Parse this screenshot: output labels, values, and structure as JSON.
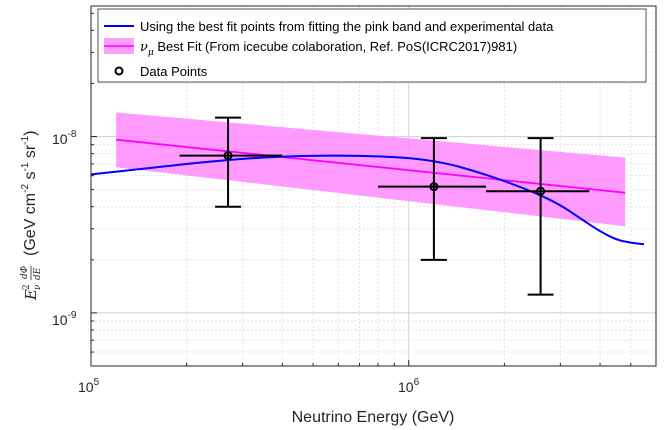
{
  "chart_data": {
    "type": "line",
    "xscale": "log",
    "yscale": "log",
    "xlim": [
      100000,
      6000000
    ],
    "ylim": [
      5e-10,
      5.5e-08
    ],
    "grid": true,
    "minor_grid": true,
    "legend_position": "top",
    "xlabel": "Neutrino Energy (GeV)",
    "ylabel": {
      "main": "(GeV cm",
      "minus2": "-2",
      "s": " s",
      "minus1a": "-1",
      "sr": " sr",
      "minus1b": "-1",
      "close": ")"
    },
    "x_ticks": [
      {
        "value": 100000,
        "base": "10",
        "exp": "5"
      },
      {
        "value": 1000000,
        "base": "10",
        "exp": "6"
      }
    ],
    "y_ticks": [
      {
        "value": 1e-09,
        "base": "10",
        "exp": "-9"
      },
      {
        "value": 1e-08,
        "base": "10",
        "exp": "-8"
      }
    ],
    "series": [
      {
        "name": "Using the best fit points from fitting the pink band and experimental data",
        "kind": "line",
        "color": "#0000ff",
        "x": [
          100000,
          150000,
          200000,
          300000,
          400000,
          500000,
          700000,
          1000000,
          1300000,
          1600000,
          2000000,
          2500000,
          3000000,
          3500000,
          4000000,
          4500000,
          5000000,
          5500000
        ],
        "y": [
          6.1e-09,
          6.6e-09,
          7e-09,
          7.5e-09,
          7.7e-09,
          7.8e-09,
          7.8e-09,
          7.6e-09,
          7.1e-09,
          6.4e-09,
          5.6e-09,
          4.8e-09,
          4.1e-09,
          3.4e-09,
          2.9e-09,
          2.6e-09,
          2.5e-09,
          2.45e-09
        ]
      },
      {
        "name_parts": {
          "nu": "ν",
          "mu": "μ",
          "rest": "  Best Fit (From icecube colaboration, Ref. PoS(ICRC2017)981)"
        },
        "kind": "band",
        "color": "#ff00ff",
        "fill_color": "#ff88ff",
        "x": [
          120000,
          4800000
        ],
        "y_center": [
          9.6e-09,
          4.8e-09
        ],
        "y_upper": [
          1.37e-08,
          7.6e-09
        ],
        "y_lower": [
          6.7e-09,
          3.1e-09
        ]
      },
      {
        "name": "Data Points",
        "kind": "errorbar",
        "color": "#000000",
        "points": [
          {
            "x": 270000,
            "y": 7.8e-09,
            "xerr": [
              190000,
              400000
            ],
            "yerr": [
              4e-09,
              1.28e-08
            ]
          },
          {
            "x": 1200000,
            "y": 5.2e-09,
            "xerr": [
              800000,
              1750000
            ],
            "yerr": [
              2e-09,
              9.8e-09
            ]
          },
          {
            "x": 2600000,
            "y": 4.9e-09,
            "xerr": [
              1750000,
              3700000
            ],
            "yerr": [
              1.27e-09,
              9.8e-09
            ]
          }
        ]
      }
    ]
  }
}
